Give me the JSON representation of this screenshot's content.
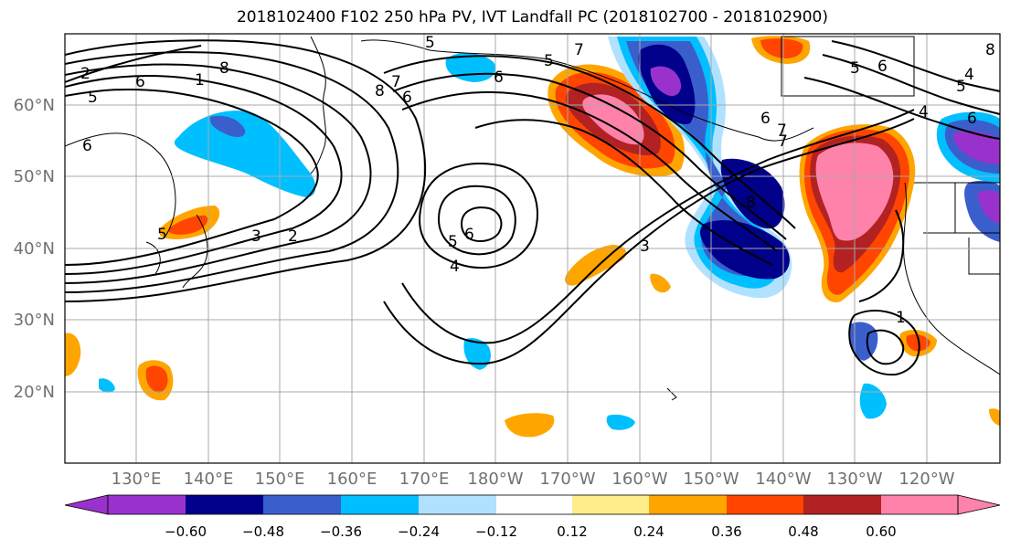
{
  "title": "2018102400 F102 250 hPa PV, IVT Landfall PC (2018102700 - 2018102900)",
  "lat_labels": [
    "60°N",
    "50°N",
    "40°N",
    "30°N",
    "20°N"
  ],
  "lon_labels": [
    "130°E",
    "140°E",
    "150°E",
    "160°E",
    "170°E",
    "180°W",
    "170°W",
    "160°W",
    "150°W",
    "140°W",
    "130°W",
    "120°W"
  ],
  "colorbar": {
    "colors": [
      "#9932CC",
      "#00008B",
      "#3A5FCD",
      "#00BFFF",
      "#B0E2FF",
      "#FFFFFF",
      "#FFEC8B",
      "#FFA500",
      "#FF4500",
      "#B22222",
      "#FF82AB"
    ],
    "tick_labels": [
      "−0.60",
      "−0.48",
      "−0.36",
      "−0.24",
      "−0.12",
      "0.12",
      "0.24",
      "0.36",
      "0.48",
      "0.60"
    ]
  },
  "contour_labels": [
    "1",
    "8",
    "2",
    "6",
    "5",
    "7",
    "6",
    "5",
    "5",
    "6",
    "6",
    "7",
    "8",
    "4",
    "5",
    "5",
    "6",
    "7",
    "8",
    "3",
    "2",
    "5",
    "4",
    "6",
    "8",
    "7",
    "6",
    "4",
    "5",
    "6",
    "3",
    "1"
  ]
}
